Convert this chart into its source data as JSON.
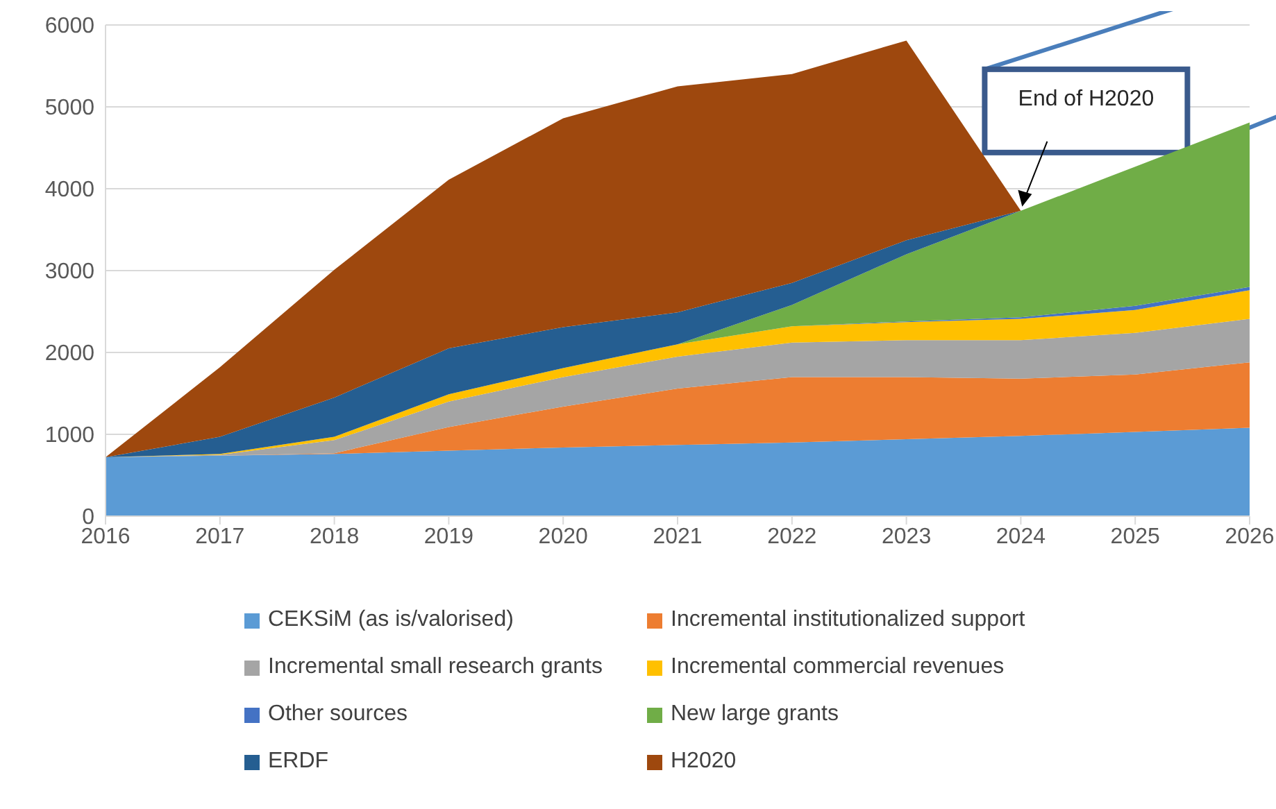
{
  "chart_data": {
    "type": "area",
    "stacked": true,
    "x": [
      2016,
      2017,
      2018,
      2019,
      2020,
      2021,
      2022,
      2023,
      2024,
      2025,
      2026
    ],
    "series": [
      {
        "name": "CEKSiM (as is/valorised)",
        "color": "#5b9bd5",
        "values": [
          720,
          740,
          760,
          800,
          840,
          870,
          900,
          940,
          980,
          1030,
          1080
        ]
      },
      {
        "name": "Incremental institutionalized support",
        "color": "#ed7d31",
        "values": [
          0,
          0,
          10,
          290,
          500,
          690,
          800,
          760,
          700,
          700,
          800
        ]
      },
      {
        "name": "Incremental small research grants",
        "color": "#a5a5a5",
        "values": [
          0,
          10,
          160,
          310,
          360,
          390,
          420,
          450,
          470,
          510,
          530
        ]
      },
      {
        "name": "Incremental commercial revenues",
        "color": "#ffc000",
        "values": [
          0,
          10,
          40,
          90,
          110,
          150,
          200,
          220,
          260,
          280,
          350
        ]
      },
      {
        "name": "Other sources",
        "color": "#4472c4",
        "values": [
          null,
          null,
          null,
          null,
          null,
          null,
          0,
          10,
          20,
          50,
          40
        ]
      },
      {
        "name": "New large grants",
        "color": "#70ad47",
        "values": [
          null,
          null,
          null,
          null,
          null,
          0,
          260,
          820,
          1300,
          1700,
          2010
        ]
      },
      {
        "name": "ERDF",
        "color": "#255e91",
        "values": [
          0,
          210,
          480,
          560,
          500,
          390,
          270,
          170,
          0,
          null,
          null
        ]
      },
      {
        "name": "H2020",
        "color": "#9e480e",
        "values": [
          0,
          850,
          1560,
          2060,
          2550,
          2760,
          2550,
          2440,
          0,
          null,
          null
        ]
      }
    ],
    "xlim": [
      2016,
      2026
    ],
    "xticks": [
      2016,
      2017,
      2018,
      2019,
      2020,
      2021,
      2022,
      2023,
      2024,
      2025,
      2026
    ],
    "ylim": [
      0,
      6000
    ],
    "yticks": [
      0,
      1000,
      2000,
      3000,
      4000,
      5000,
      6000
    ],
    "grid": "y",
    "legend": "bottom",
    "annotations": [
      "End of H2020"
    ]
  }
}
